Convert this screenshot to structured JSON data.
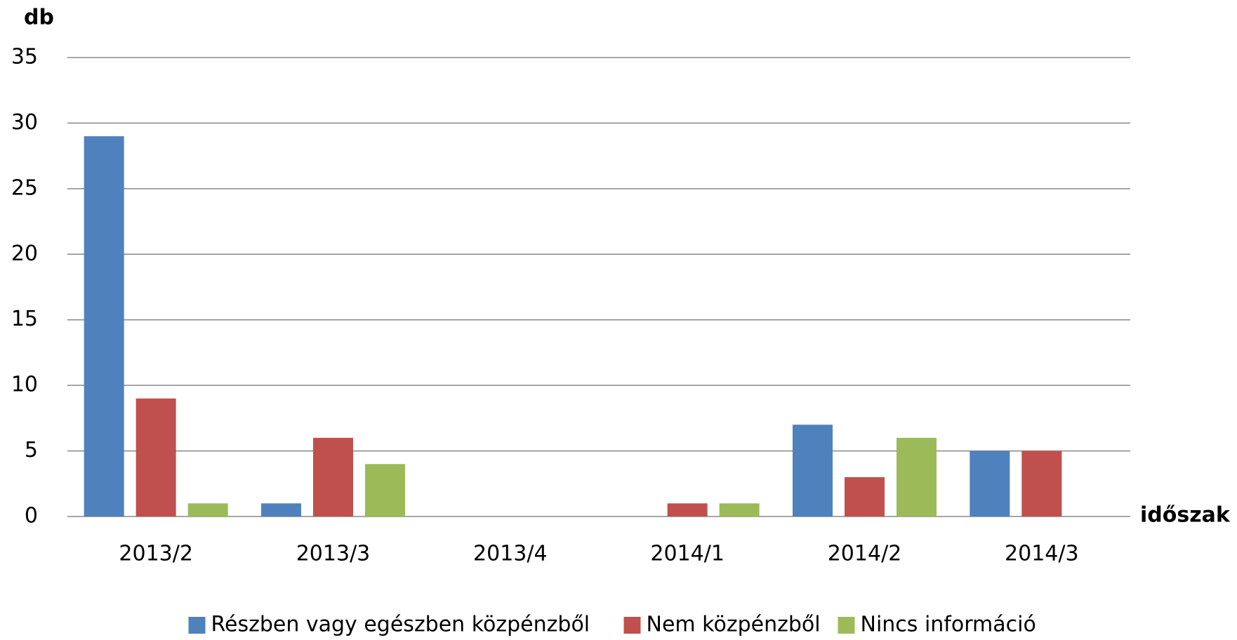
{
  "chart_data": {
    "type": "bar",
    "y_label": "db",
    "x_label": "időszak",
    "categories": [
      "2013/2",
      "2013/3",
      "2013/4",
      "2014/1",
      "2014/2",
      "2014/3"
    ],
    "series": [
      {
        "name": "Részben vagy egészben közpénzből",
        "color": "#4f81bd",
        "values": [
          29,
          1,
          0,
          0,
          7,
          5
        ]
      },
      {
        "name": "Nem közpénzből",
        "color": "#c0504d",
        "values": [
          9,
          6,
          0,
          1,
          3,
          5
        ]
      },
      {
        "name": "Nincs információ",
        "color": "#9bbb59",
        "values": [
          1,
          4,
          0,
          1,
          6,
          0
        ]
      }
    ],
    "ylim": [
      0,
      35
    ],
    "yticks": [
      0,
      5,
      10,
      15,
      20,
      25,
      30,
      35
    ],
    "grid": true,
    "legend": "bottom"
  }
}
